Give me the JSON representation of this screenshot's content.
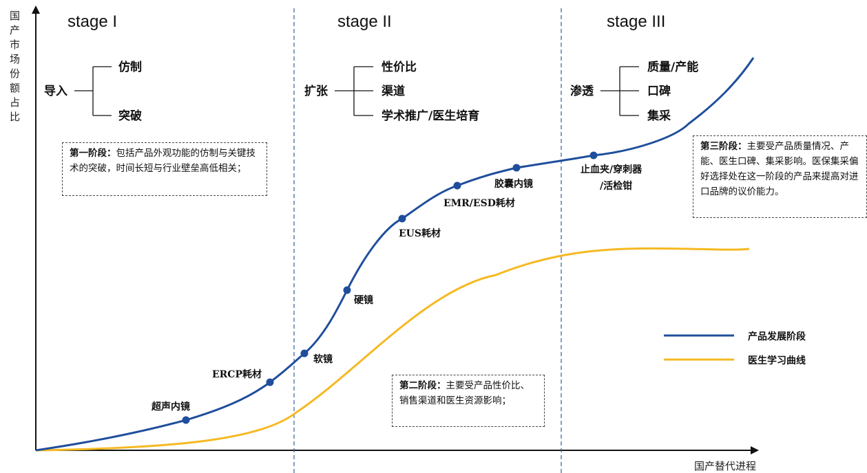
{
  "axes": {
    "y_label": "国产市场份额占比",
    "x_label": "国产替代进程"
  },
  "stages": [
    {
      "title": "stage I",
      "root": "导入",
      "branches": [
        "仿制",
        "突破"
      ],
      "note_head": "第一阶段：",
      "note_body": "包括产品外观功能的仿制与关键技术的突破，时间长短与行业壁垒高低相关；"
    },
    {
      "title": "stage II",
      "root": "扩张",
      "branches": [
        "性价比",
        "渠道",
        "学术推广/医生培育"
      ],
      "note_head": "第二阶段：",
      "note_body": "主要受产品性价比、销售渠道和医生资源影响；"
    },
    {
      "title": "stage III",
      "root": "渗透",
      "branches": [
        "质量/产能",
        "口碑",
        "集采"
      ],
      "note_head": "第三阶段：",
      "note_body": "主要受产品质量情况、产能、医生口碑、集采影响。医保集采偏好选择处在这一阶段的产品来提高对进口品牌的议价能力。"
    }
  ],
  "curve_points": [
    {
      "label": "超声内镜"
    },
    {
      "label": "ERCP耗材"
    },
    {
      "label": "软镜"
    },
    {
      "label": "硬镜"
    },
    {
      "label": "EUS耗材"
    },
    {
      "label": "EMR/ESD耗材"
    },
    {
      "label": "胶囊内镜"
    },
    {
      "label": "止血夹/穿刺器\n/活检钳"
    }
  ],
  "legend": [
    {
      "name": "产品发展阶段",
      "color": "#1f4e9c"
    },
    {
      "name": "医生学习曲线",
      "color": "#f5b921"
    }
  ],
  "colors": {
    "blue": "#1f4e9c",
    "yellow": "#f5b921",
    "divider": "#2e5f9e"
  }
}
